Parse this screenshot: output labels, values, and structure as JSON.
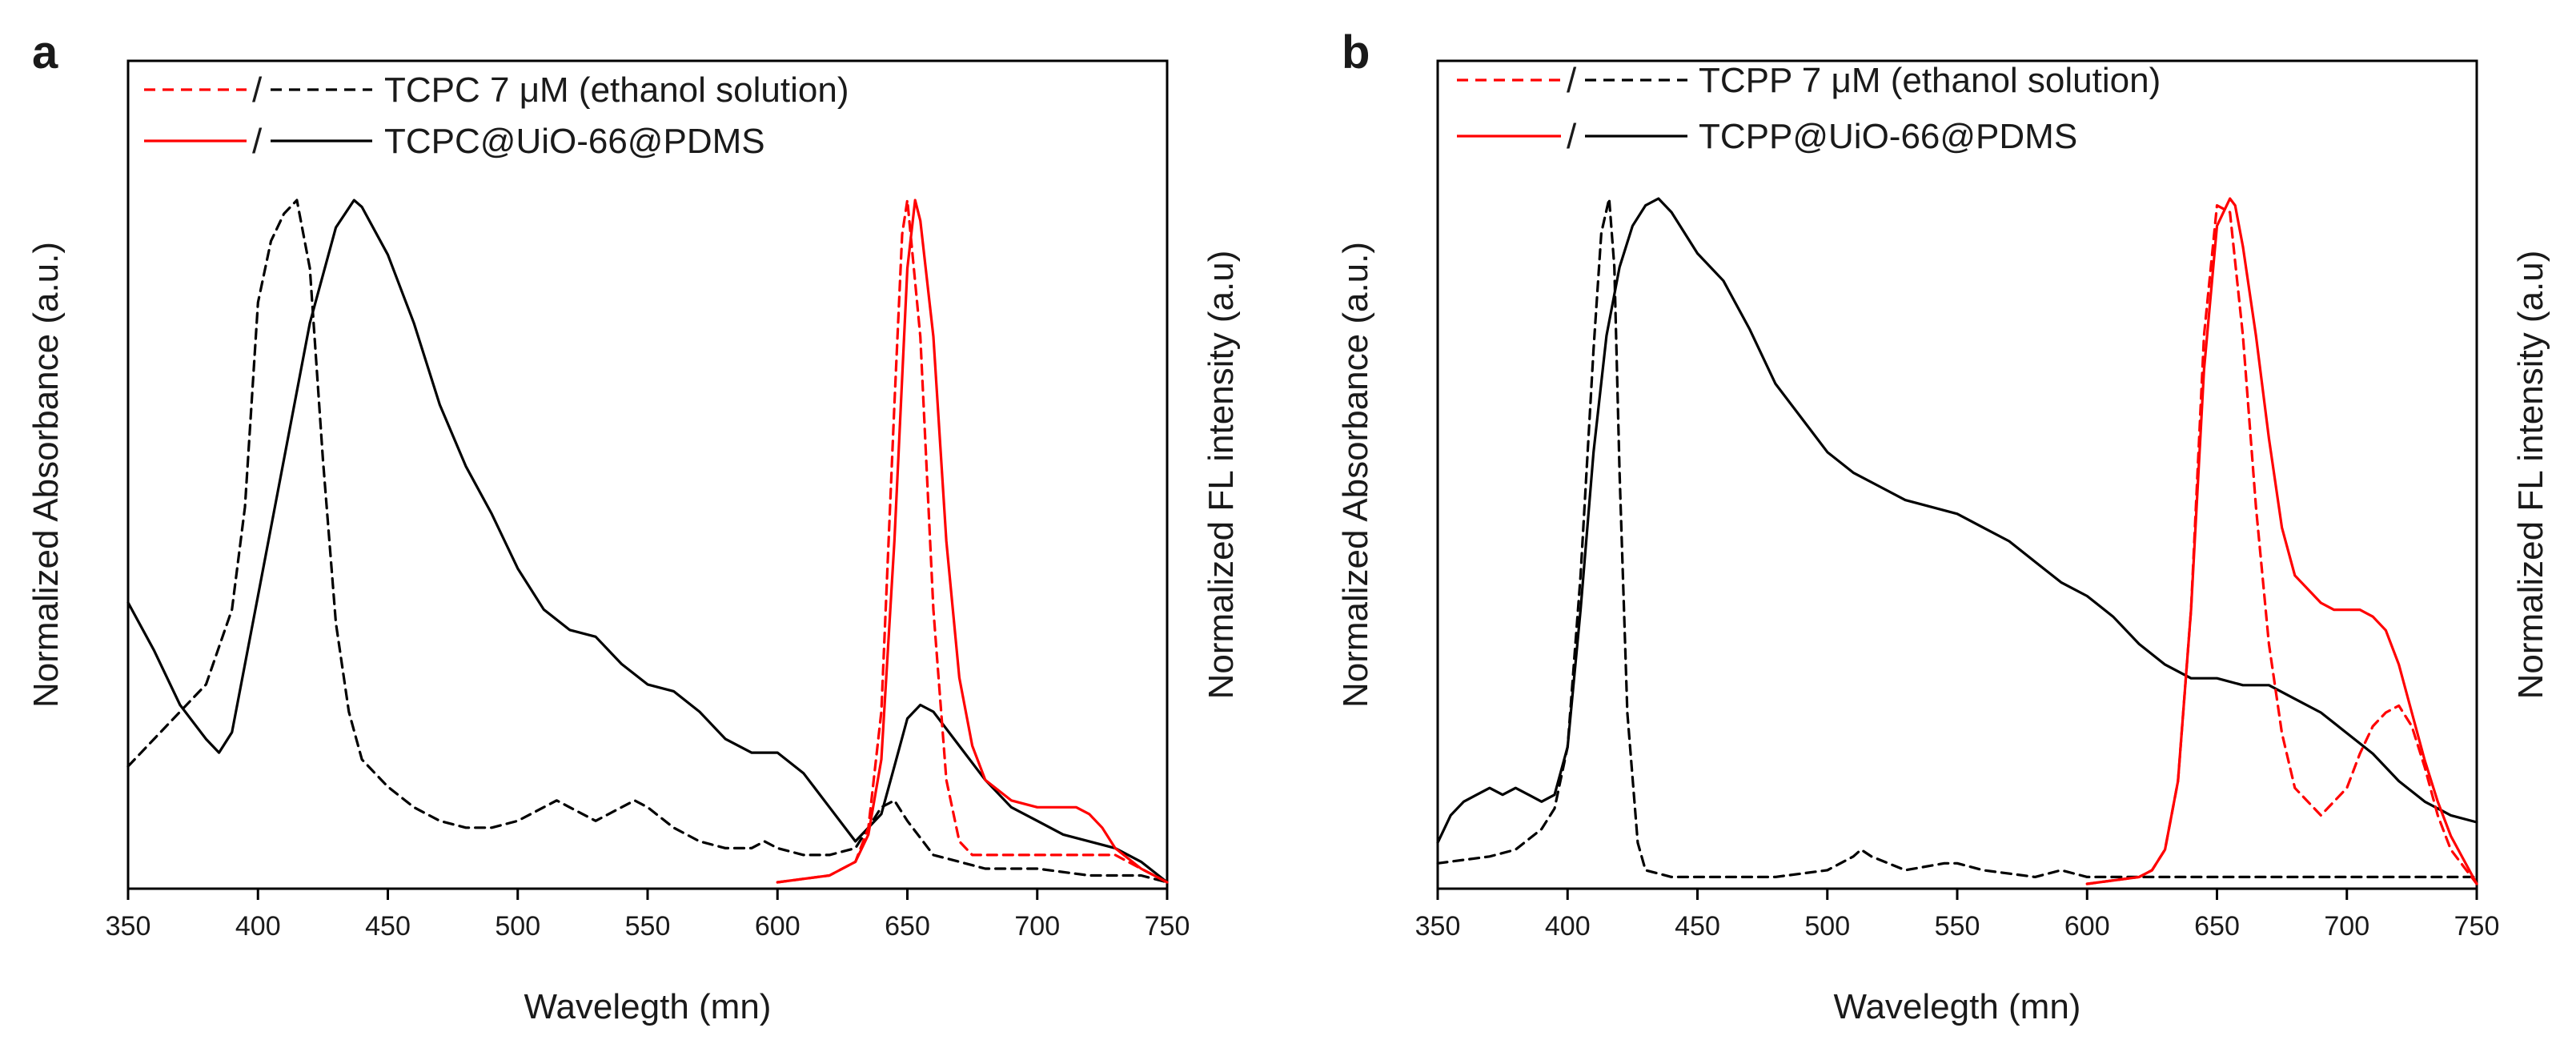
{
  "chart_data": [
    {
      "type": "line",
      "panel": "a",
      "xlabel": "Wavelegth (mn)",
      "ylabel_left": "Normalized Absorbance (a.u.)",
      "ylabel_right": "Normalized FL intensity (a.u)",
      "xlim": [
        350,
        750
      ],
      "ylim": [
        0,
        1.0
      ],
      "xticks": [
        350,
        400,
        450,
        500,
        550,
        600,
        650,
        700,
        750
      ],
      "legend": [
        {
          "slash": "/",
          "label": "TCPC 7 μM (ethanol solution)",
          "red_style": "dashed",
          "black_style": "dashed"
        },
        {
          "slash": "/",
          "label": "TCPC@UiO-66@PDMS",
          "red_style": "solid",
          "black_style": "solid"
        }
      ],
      "series": [
        {
          "name": "TCPC 7 μM absorbance",
          "color": "#000000",
          "style": "dashed",
          "x": [
            350,
            360,
            370,
            380,
            390,
            395,
            400,
            405,
            410,
            415,
            420,
            425,
            430,
            435,
            440,
            450,
            460,
            470,
            480,
            490,
            500,
            510,
            515,
            520,
            530,
            540,
            545,
            550,
            560,
            570,
            580,
            590,
            595,
            600,
            610,
            620,
            630,
            640,
            645,
            650,
            660,
            670,
            680,
            700,
            720,
            740,
            750
          ],
          "y": [
            0.17,
            0.21,
            0.25,
            0.29,
            0.4,
            0.55,
            0.85,
            0.94,
            0.98,
            1.0,
            0.9,
            0.62,
            0.38,
            0.25,
            0.18,
            0.14,
            0.11,
            0.09,
            0.08,
            0.08,
            0.09,
            0.11,
            0.12,
            0.11,
            0.09,
            0.11,
            0.12,
            0.11,
            0.08,
            0.06,
            0.05,
            0.05,
            0.06,
            0.05,
            0.04,
            0.04,
            0.05,
            0.11,
            0.12,
            0.09,
            0.04,
            0.03,
            0.02,
            0.02,
            0.01,
            0.01,
            0.0
          ]
        },
        {
          "name": "TCPC@UiO-66@PDMS absorbance",
          "color": "#000000",
          "style": "solid",
          "x": [
            350,
            360,
            370,
            380,
            385,
            390,
            400,
            410,
            420,
            430,
            437,
            440,
            450,
            460,
            470,
            480,
            490,
            500,
            510,
            520,
            530,
            540,
            550,
            560,
            570,
            580,
            590,
            600,
            610,
            620,
            630,
            640,
            645,
            650,
            655,
            660,
            670,
            680,
            690,
            700,
            710,
            720,
            730,
            740,
            750
          ],
          "y": [
            0.41,
            0.34,
            0.26,
            0.21,
            0.19,
            0.22,
            0.42,
            0.62,
            0.82,
            0.96,
            1.0,
            0.99,
            0.92,
            0.82,
            0.7,
            0.61,
            0.54,
            0.46,
            0.4,
            0.37,
            0.36,
            0.32,
            0.29,
            0.28,
            0.25,
            0.21,
            0.19,
            0.19,
            0.16,
            0.11,
            0.06,
            0.1,
            0.17,
            0.24,
            0.26,
            0.25,
            0.2,
            0.15,
            0.11,
            0.09,
            0.07,
            0.06,
            0.05,
            0.03,
            0.0
          ]
        },
        {
          "name": "TCPC 7 μM fluorescence",
          "color": "#ff0000",
          "style": "dashed",
          "x": [
            600,
            620,
            630,
            635,
            640,
            645,
            648,
            650,
            655,
            660,
            665,
            670,
            675,
            680,
            690,
            700,
            710,
            720,
            730,
            740,
            750
          ],
          "y": [
            0.0,
            0.01,
            0.03,
            0.08,
            0.25,
            0.7,
            0.95,
            1.0,
            0.8,
            0.4,
            0.15,
            0.06,
            0.04,
            0.04,
            0.04,
            0.04,
            0.04,
            0.04,
            0.04,
            0.02,
            0.0
          ]
        },
        {
          "name": "TCPC@UiO-66@PDMS fluorescence",
          "color": "#ff0000",
          "style": "solid",
          "x": [
            600,
            620,
            630,
            635,
            640,
            645,
            650,
            653,
            655,
            660,
            665,
            670,
            675,
            680,
            690,
            700,
            705,
            710,
            715,
            720,
            725,
            730,
            740,
            750
          ],
          "y": [
            0.0,
            0.01,
            0.03,
            0.07,
            0.18,
            0.5,
            0.9,
            1.0,
            0.97,
            0.8,
            0.5,
            0.3,
            0.2,
            0.15,
            0.12,
            0.11,
            0.11,
            0.11,
            0.11,
            0.1,
            0.08,
            0.05,
            0.02,
            0.0
          ]
        }
      ]
    },
    {
      "type": "line",
      "panel": "b",
      "xlabel": "Wavelegth (mn)",
      "ylabel_left": "Normalized Absorbance (a.u.)",
      "ylabel_right": "Normalized FL intensity (a.u)",
      "xlim": [
        350,
        750
      ],
      "ylim": [
        0,
        1.0
      ],
      "xticks": [
        350,
        400,
        450,
        500,
        550,
        600,
        650,
        700,
        750
      ],
      "legend": [
        {
          "slash": "/",
          "label": "TCPP 7 μM (ethanol solution)",
          "red_style": "dashed",
          "black_style": "dashed"
        },
        {
          "slash": "/",
          "label": "TCPP@UiO-66@PDMS",
          "red_style": "solid",
          "black_style": "solid"
        }
      ],
      "series": [
        {
          "name": "TCPP 7 μM absorbance",
          "color": "#000000",
          "style": "dashed",
          "x": [
            350,
            370,
            380,
            390,
            395,
            400,
            405,
            410,
            413,
            416,
            418,
            420,
            423,
            427,
            430,
            440,
            450,
            480,
            500,
            510,
            513,
            517,
            530,
            545,
            550,
            560,
            580,
            590,
            600,
            620,
            640,
            660,
            700,
            750
          ],
          "y": [
            0.03,
            0.04,
            0.05,
            0.08,
            0.11,
            0.2,
            0.45,
            0.78,
            0.95,
            1.0,
            0.9,
            0.6,
            0.25,
            0.06,
            0.02,
            0.01,
            0.01,
            0.01,
            0.02,
            0.04,
            0.05,
            0.04,
            0.02,
            0.03,
            0.03,
            0.02,
            0.01,
            0.02,
            0.01,
            0.01,
            0.01,
            0.01,
            0.01,
            0.01
          ]
        },
        {
          "name": "TCPP@UiO-66@PDMS absorbance",
          "color": "#000000",
          "style": "solid",
          "x": [
            350,
            355,
            360,
            365,
            370,
            375,
            380,
            385,
            390,
            395,
            400,
            405,
            410,
            415,
            420,
            425,
            430,
            435,
            440,
            450,
            460,
            470,
            480,
            490,
            500,
            510,
            520,
            530,
            540,
            550,
            560,
            570,
            580,
            590,
            600,
            610,
            620,
            630,
            640,
            650,
            660,
            670,
            680,
            690,
            700,
            710,
            720,
            730,
            740,
            750
          ],
          "y": [
            0.06,
            0.1,
            0.12,
            0.13,
            0.14,
            0.13,
            0.14,
            0.13,
            0.12,
            0.13,
            0.2,
            0.4,
            0.63,
            0.8,
            0.9,
            0.96,
            0.99,
            1.0,
            0.98,
            0.92,
            0.88,
            0.81,
            0.73,
            0.68,
            0.63,
            0.6,
            0.58,
            0.56,
            0.55,
            0.54,
            0.52,
            0.5,
            0.47,
            0.44,
            0.42,
            0.39,
            0.35,
            0.32,
            0.3,
            0.3,
            0.29,
            0.29,
            0.27,
            0.25,
            0.22,
            0.19,
            0.15,
            0.12,
            0.1,
            0.09
          ]
        },
        {
          "name": "TCPP 7 μM fluorescence",
          "color": "#ff0000",
          "style": "dashed",
          "x": [
            600,
            620,
            625,
            630,
            635,
            640,
            645,
            650,
            655,
            660,
            665,
            670,
            675,
            680,
            690,
            700,
            705,
            710,
            715,
            720,
            725,
            730,
            735,
            740,
            750
          ],
          "y": [
            0.0,
            0.01,
            0.02,
            0.05,
            0.15,
            0.4,
            0.8,
            0.99,
            0.98,
            0.8,
            0.55,
            0.35,
            0.22,
            0.14,
            0.1,
            0.14,
            0.19,
            0.23,
            0.25,
            0.26,
            0.23,
            0.17,
            0.1,
            0.05,
            0.0
          ]
        },
        {
          "name": "TCPP@UiO-66@PDMS fluorescence",
          "color": "#ff0000",
          "style": "solid",
          "x": [
            600,
            620,
            625,
            630,
            635,
            640,
            645,
            650,
            655,
            657,
            660,
            665,
            670,
            675,
            680,
            690,
            695,
            700,
            705,
            710,
            715,
            720,
            725,
            730,
            735,
            740,
            750
          ],
          "y": [
            0.0,
            0.01,
            0.02,
            0.05,
            0.15,
            0.4,
            0.75,
            0.96,
            1.0,
            0.99,
            0.93,
            0.8,
            0.65,
            0.52,
            0.45,
            0.41,
            0.4,
            0.4,
            0.4,
            0.39,
            0.37,
            0.32,
            0.25,
            0.18,
            0.12,
            0.07,
            0.0
          ]
        }
      ]
    }
  ]
}
